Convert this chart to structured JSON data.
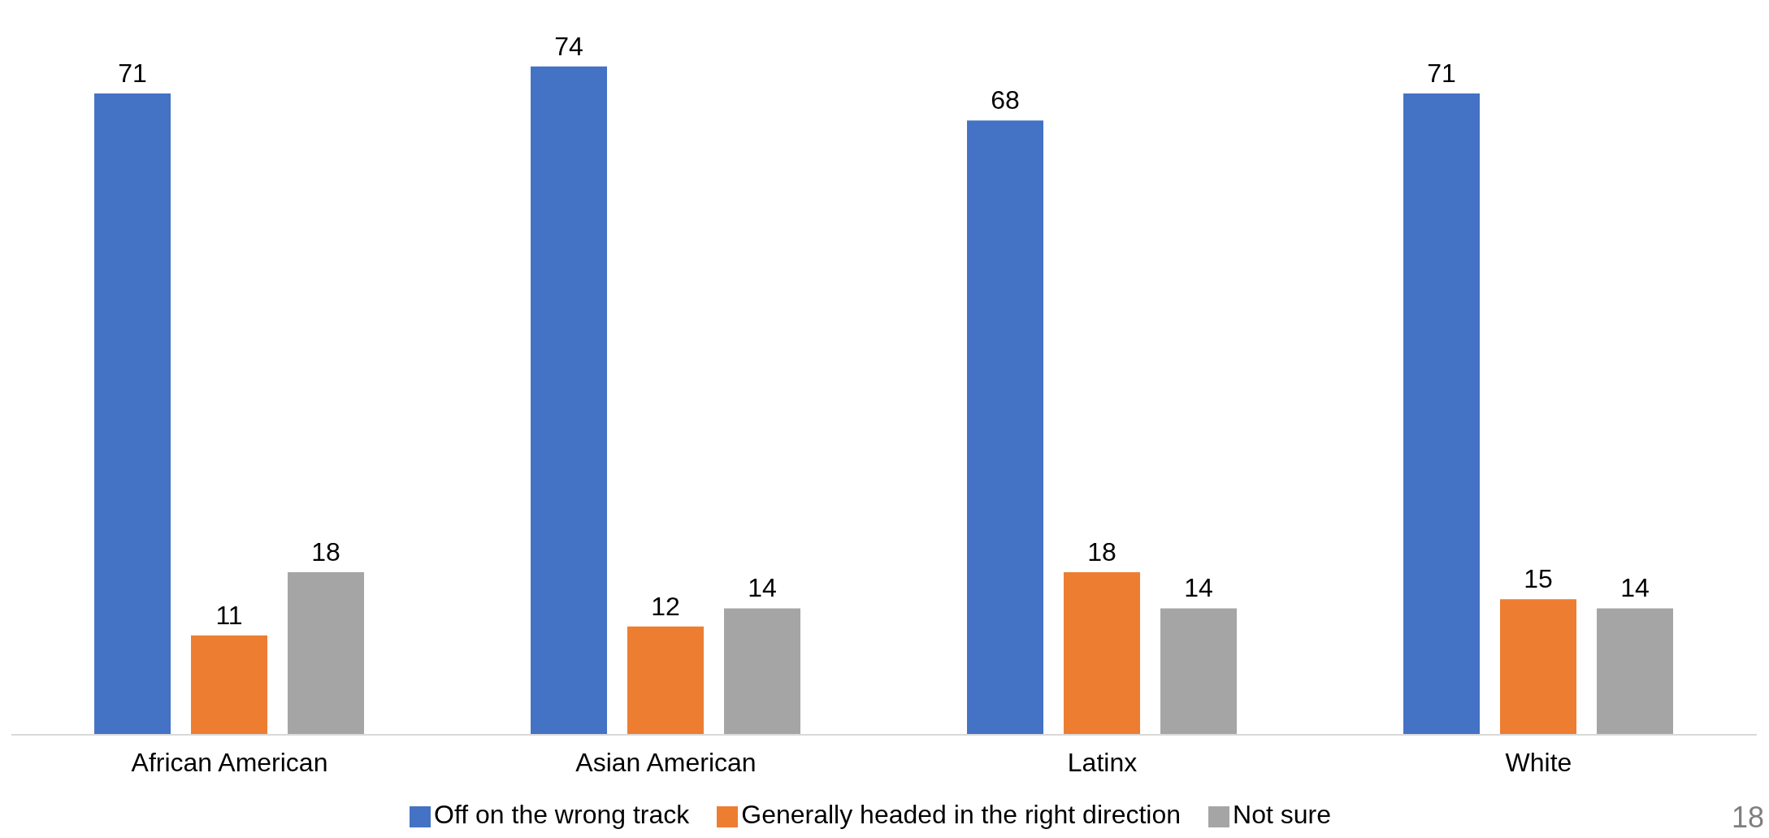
{
  "chart_data": {
    "type": "bar",
    "categories": [
      "African American",
      "Asian American",
      "Latinx",
      "White"
    ],
    "series": [
      {
        "name": "Off on the wrong track",
        "color": "#4472c4",
        "values": [
          71,
          74,
          68,
          71
        ]
      },
      {
        "name": "Generally headed in the right direction",
        "color": "#ed7d31",
        "values": [
          11,
          12,
          18,
          15
        ]
      },
      {
        "name": "Not sure",
        "color": "#a5a5a5",
        "values": [
          18,
          14,
          14,
          14
        ]
      }
    ],
    "tick_labels": "x",
    "data_labels": true,
    "legend": "bottom",
    "annotations": [
      "18"
    ]
  }
}
